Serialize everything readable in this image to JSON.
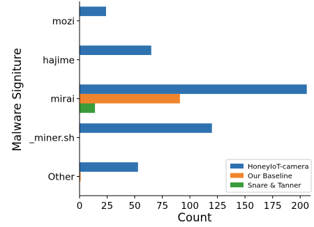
{
  "chart_data": {
    "type": "bar",
    "orientation": "horizontal",
    "categories": [
      "mozi",
      "hajime",
      "mirai",
      "_miner.sh",
      "Other"
    ],
    "series": [
      {
        "name": "HoneyIoT-camera",
        "values": [
          24,
          65,
          206,
          120,
          53
        ],
        "color": "#2f72b0"
      },
      {
        "name": "Our Baseline",
        "values": [
          0,
          0,
          91,
          0,
          1
        ],
        "color": "#f0842c"
      },
      {
        "name": "Snare & Tanner",
        "values": [
          0,
          0,
          14,
          0,
          0
        ],
        "color": "#3a9c3a"
      }
    ],
    "xlabel": "Count",
    "ylabel": "Malware Signiture",
    "xlim": [
      0,
      210
    ],
    "xticks": [
      "0",
      "25",
      "50",
      "75",
      "100",
      "125",
      "150",
      "175",
      "200"
    ],
    "grid": false,
    "legend_position": "lower-right"
  }
}
